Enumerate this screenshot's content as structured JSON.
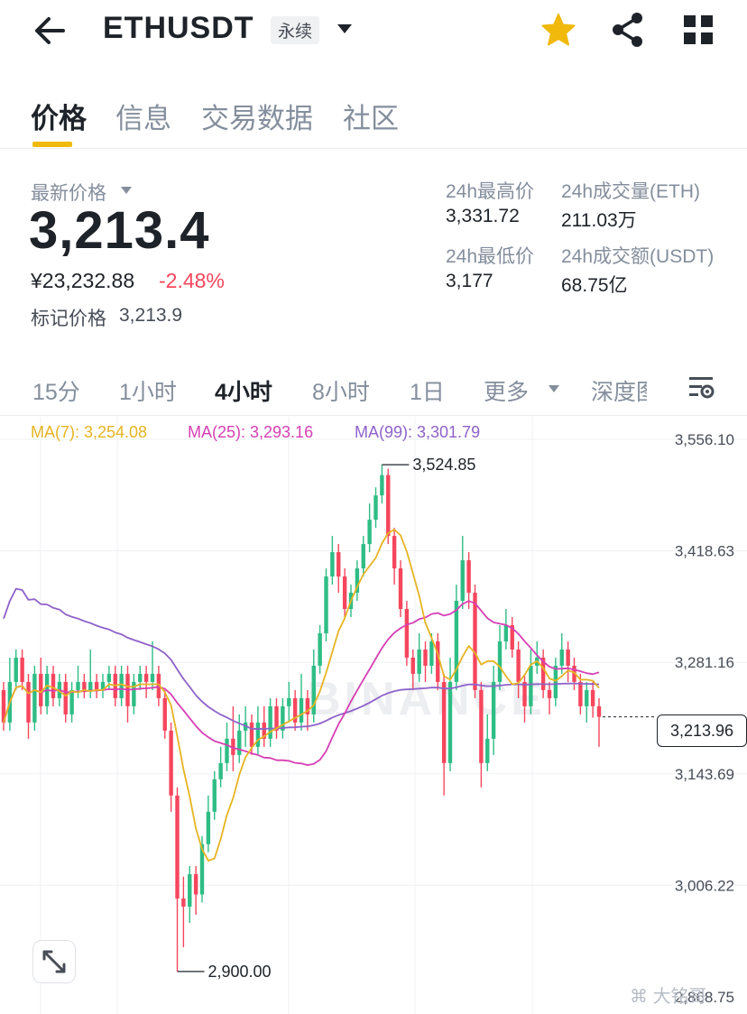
{
  "header": {
    "symbol": "ETHUSDT",
    "badge": "永续",
    "icons": {
      "back": "arrow-left-icon",
      "caret": "caret-down-icon",
      "star": "star-icon",
      "share": "share-icon",
      "grid": "grid-icon"
    },
    "star_color": "#f0b90b"
  },
  "tabs": [
    {
      "label": "价格",
      "active": true
    },
    {
      "label": "信息",
      "active": false
    },
    {
      "label": "交易数据",
      "active": false
    },
    {
      "label": "社区",
      "active": false
    }
  ],
  "price": {
    "latest_label": "最新价格",
    "last": "3,213.4",
    "cny": "¥23,232.88",
    "change": "-2.48%",
    "mark_label": "标记价格",
    "mark_value": "3,213.9"
  },
  "stats": {
    "high_label": "24h最高价",
    "high": "3,331.72",
    "low_label": "24h最低价",
    "low": "3,177",
    "vol_label": "24h成交量(ETH)",
    "vol": "211.03万",
    "amt_label": "24h成交额(USDT)",
    "amt": "68.75亿"
  },
  "intervals": [
    {
      "label": "15分",
      "active": false
    },
    {
      "label": "1小时",
      "active": false
    },
    {
      "label": "4小时",
      "active": true
    },
    {
      "label": "8小时",
      "active": false
    },
    {
      "label": "1日",
      "active": false
    },
    {
      "label": "更多",
      "active": false
    },
    {
      "label": "深度图",
      "active": false
    }
  ],
  "ma_legend": {
    "ma7": "MA(7): 3,254.08",
    "ma25": "MA(25): 3,293.16",
    "ma99": "MA(99): 3,301.79"
  },
  "colors": {
    "up": "#2ebd85",
    "down": "#f6465d",
    "ma7": "#e6b422",
    "ma25": "#d63fb4",
    "ma99": "#8e62c9",
    "accent": "#f0b90b"
  },
  "watermark": "BINANCE",
  "brand_watermark": "大铭哥",
  "chart_data": {
    "type": "candlestick",
    "y_ticks": [
      "3,556.10",
      "3,418.63",
      "3,281.16",
      "3,143.69",
      "3,006.22",
      "2,868.75"
    ],
    "y_tick_values": [
      3556.1,
      3418.63,
      3281.16,
      3143.69,
      3006.22,
      2868.75
    ],
    "ylim": [
      2868.75,
      3556.1
    ],
    "high_callout": {
      "label": "3,524.85",
      "value": 3524.85,
      "index": 61
    },
    "low_callout": {
      "label": "2,900.00",
      "value": 2900.0,
      "index": 28
    },
    "current_price": "3,213.96",
    "current_price_value": 3213.96,
    "candles": [
      [
        3247,
        3207,
        3197,
        3257
      ],
      [
        3207,
        3257,
        3197,
        3287
      ],
      [
        3257,
        3287,
        3247,
        3297
      ],
      [
        3287,
        3257,
        3247,
        3297
      ],
      [
        3257,
        3207,
        3187,
        3267
      ],
      [
        3207,
        3267,
        3197,
        3277
      ],
      [
        3267,
        3227,
        3217,
        3287
      ],
      [
        3227,
        3267,
        3217,
        3277
      ],
      [
        3267,
        3237,
        3227,
        3277
      ],
      [
        3237,
        3257,
        3227,
        3267
      ],
      [
        3257,
        3217,
        3207,
        3267
      ],
      [
        3217,
        3247,
        3207,
        3257
      ],
      [
        3247,
        3257,
        3237,
        3277
      ],
      [
        3257,
        3247,
        3237,
        3267
      ],
      [
        3247,
        3257,
        3237,
        3297
      ],
      [
        3257,
        3247,
        3237,
        3267
      ],
      [
        3247,
        3257,
        3237,
        3267
      ],
      [
        3257,
        3267,
        3247,
        3277
      ],
      [
        3267,
        3237,
        3227,
        3277
      ],
      [
        3237,
        3267,
        3227,
        3277
      ],
      [
        3267,
        3227,
        3207,
        3277
      ],
      [
        3227,
        3257,
        3217,
        3267
      ],
      [
        3257,
        3267,
        3247,
        3277
      ],
      [
        3267,
        3257,
        3237,
        3277
      ],
      [
        3257,
        3267,
        3247,
        3307
      ],
      [
        3267,
        3237,
        3227,
        3277
      ],
      [
        3237,
        3197,
        3187,
        3247
      ],
      [
        3197,
        3117,
        3097,
        3207
      ],
      [
        3117,
        2990,
        2900,
        3127
      ],
      [
        2990,
        2980,
        2930,
        3017
      ],
      [
        2980,
        3020,
        2960,
        3030
      ],
      [
        3020,
        2995,
        2970,
        3030
      ],
      [
        2995,
        3057,
        2985,
        3067
      ],
      [
        3057,
        3097,
        3047,
        3117
      ],
      [
        3097,
        3137,
        3087,
        3147
      ],
      [
        3137,
        3157,
        3127,
        3177
      ],
      [
        3157,
        3187,
        3147,
        3207
      ],
      [
        3187,
        3167,
        3147,
        3227
      ],
      [
        3167,
        3197,
        3157,
        3217
      ],
      [
        3197,
        3207,
        3177,
        3227
      ],
      [
        3207,
        3177,
        3167,
        3217
      ],
      [
        3177,
        3207,
        3167,
        3227
      ],
      [
        3207,
        3187,
        3177,
        3227
      ],
      [
        3187,
        3227,
        3177,
        3237
      ],
      [
        3227,
        3197,
        3187,
        3237
      ],
      [
        3197,
        3227,
        3187,
        3237
      ],
      [
        3227,
        3237,
        3207,
        3257
      ],
      [
        3237,
        3207,
        3197,
        3247
      ],
      [
        3207,
        3237,
        3197,
        3267
      ],
      [
        3237,
        3217,
        3197,
        3247
      ],
      [
        3217,
        3277,
        3207,
        3297
      ],
      [
        3277,
        3317,
        3267,
        3327
      ],
      [
        3317,
        3387,
        3307,
        3397
      ],
      [
        3387,
        3417,
        3377,
        3437
      ],
      [
        3417,
        3387,
        3367,
        3427
      ],
      [
        3387,
        3347,
        3337,
        3397
      ],
      [
        3347,
        3367,
        3337,
        3377
      ],
      [
        3367,
        3397,
        3357,
        3407
      ],
      [
        3397,
        3427,
        3387,
        3437
      ],
      [
        3427,
        3457,
        3417,
        3477
      ],
      [
        3457,
        3487,
        3447,
        3497
      ],
      [
        3487,
        3512,
        3477,
        3524.85
      ],
      [
        3512,
        3437,
        3427,
        3520
      ],
      [
        3437,
        3397,
        3377,
        3447
      ],
      [
        3397,
        3347,
        3337,
        3407
      ],
      [
        3347,
        3287,
        3277,
        3357
      ],
      [
        3287,
        3267,
        3247,
        3297
      ],
      [
        3267,
        3297,
        3257,
        3317
      ],
      [
        3297,
        3277,
        3257,
        3307
      ],
      [
        3277,
        3307,
        3267,
        3317
      ],
      [
        3307,
        3257,
        3247,
        3317
      ],
      [
        3257,
        3157,
        3117,
        3267
      ],
      [
        3157,
        3257,
        3147,
        3287
      ],
      [
        3257,
        3357,
        3247,
        3377
      ],
      [
        3357,
        3407,
        3347,
        3437
      ],
      [
        3407,
        3367,
        3347,
        3417
      ],
      [
        3367,
        3247,
        3237,
        3377
      ],
      [
        3247,
        3157,
        3127,
        3257
      ],
      [
        3157,
        3187,
        3147,
        3217
      ],
      [
        3187,
        3257,
        3167,
        3277
      ],
      [
        3257,
        3307,
        3247,
        3327
      ],
      [
        3307,
        3327,
        3297,
        3347
      ],
      [
        3327,
        3297,
        3287,
        3337
      ],
      [
        3297,
        3257,
        3237,
        3307
      ],
      [
        3257,
        3227,
        3207,
        3267
      ],
      [
        3227,
        3277,
        3217,
        3297
      ],
      [
        3277,
        3287,
        3267,
        3307
      ],
      [
        3287,
        3247,
        3237,
        3297
      ],
      [
        3247,
        3237,
        3217,
        3257
      ],
      [
        3237,
        3277,
        3227,
        3287
      ],
      [
        3277,
        3297,
        3267,
        3317
      ],
      [
        3297,
        3277,
        3257,
        3307
      ],
      [
        3277,
        3257,
        3247,
        3287
      ],
      [
        3257,
        3227,
        3217,
        3267
      ],
      [
        3227,
        3247,
        3207,
        3257
      ],
      [
        3247,
        3227,
        3213,
        3257
      ],
      [
        3227,
        3213.96,
        3177,
        3237
      ]
    ]
  }
}
